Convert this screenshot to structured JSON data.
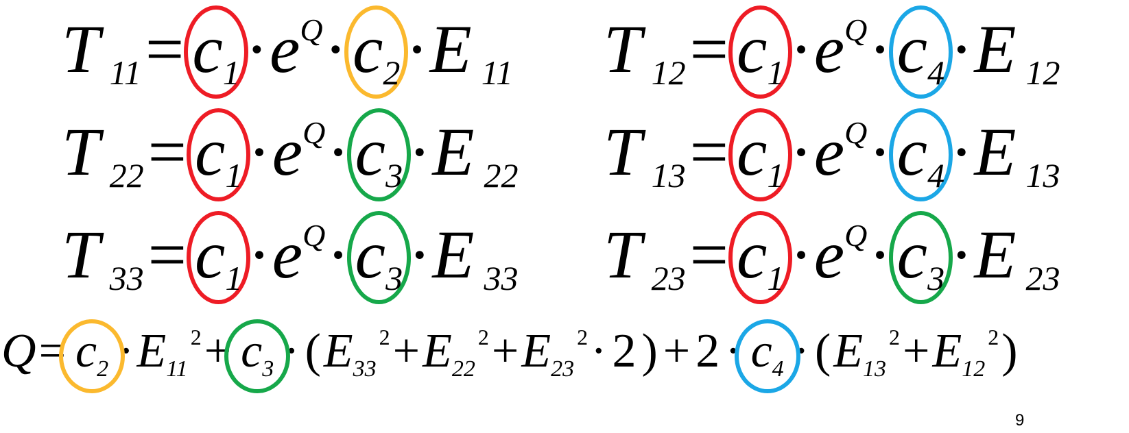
{
  "colors": {
    "c1": "#ee1c25",
    "c2": "#fbb92e",
    "c3": "#16a84a",
    "c4": "#1ba7e6"
  },
  "equations": [
    {
      "lhs": "T",
      "lhs_sub": "11",
      "c_a": "c",
      "c_a_sub": "1",
      "e": "e",
      "exp": "Q",
      "c_b": "c",
      "c_b_sub": "2",
      "E": "E",
      "E_sub": "11",
      "ring_b": "c2"
    },
    {
      "lhs": "T",
      "lhs_sub": "12",
      "c_a": "c",
      "c_a_sub": "1",
      "e": "e",
      "exp": "Q",
      "c_b": "c",
      "c_b_sub": "4",
      "E": "E",
      "E_sub": "12",
      "ring_b": "c4"
    },
    {
      "lhs": "T",
      "lhs_sub": "22",
      "c_a": "c",
      "c_a_sub": "1",
      "e": "e",
      "exp": "Q",
      "c_b": "c",
      "c_b_sub": "3",
      "E": "E",
      "E_sub": "22",
      "ring_b": "c3"
    },
    {
      "lhs": "T",
      "lhs_sub": "13",
      "c_a": "c",
      "c_a_sub": "1",
      "e": "e",
      "exp": "Q",
      "c_b": "c",
      "c_b_sub": "4",
      "E": "E",
      "E_sub": "13",
      "ring_b": "c4"
    },
    {
      "lhs": "T",
      "lhs_sub": "33",
      "c_a": "c",
      "c_a_sub": "1",
      "e": "e",
      "exp": "Q",
      "c_b": "c",
      "c_b_sub": "3",
      "E": "E",
      "E_sub": "33",
      "ring_b": "c3"
    },
    {
      "lhs": "T",
      "lhs_sub": "23",
      "c_a": "c",
      "c_a_sub": "1",
      "e": "e",
      "exp": "Q",
      "c_b": "c",
      "c_b_sub": "3",
      "E": "E",
      "E_sub": "23",
      "ring_b": "c3"
    }
  ],
  "q_equation": {
    "Q": "Q",
    "eq": "=",
    "c2": "c",
    "c2_sub": "2",
    "E11": "E",
    "E11_sub": "11",
    "sq": "2",
    "plus": "+",
    "c3": "c",
    "c3_sub": "3",
    "open": "(",
    "E33": "E",
    "E33_sub": "33",
    "E22": "E",
    "E22_sub": "22",
    "E23": "E",
    "E23_sub": "23",
    "two": "2",
    "close": ")",
    "c4": "c",
    "c4_sub": "4",
    "E13": "E",
    "E13_sub": "13",
    "E12": "E",
    "E12_sub": "12"
  },
  "operators": {
    "equals": "=",
    "dot": "·"
  },
  "page_number": "9"
}
